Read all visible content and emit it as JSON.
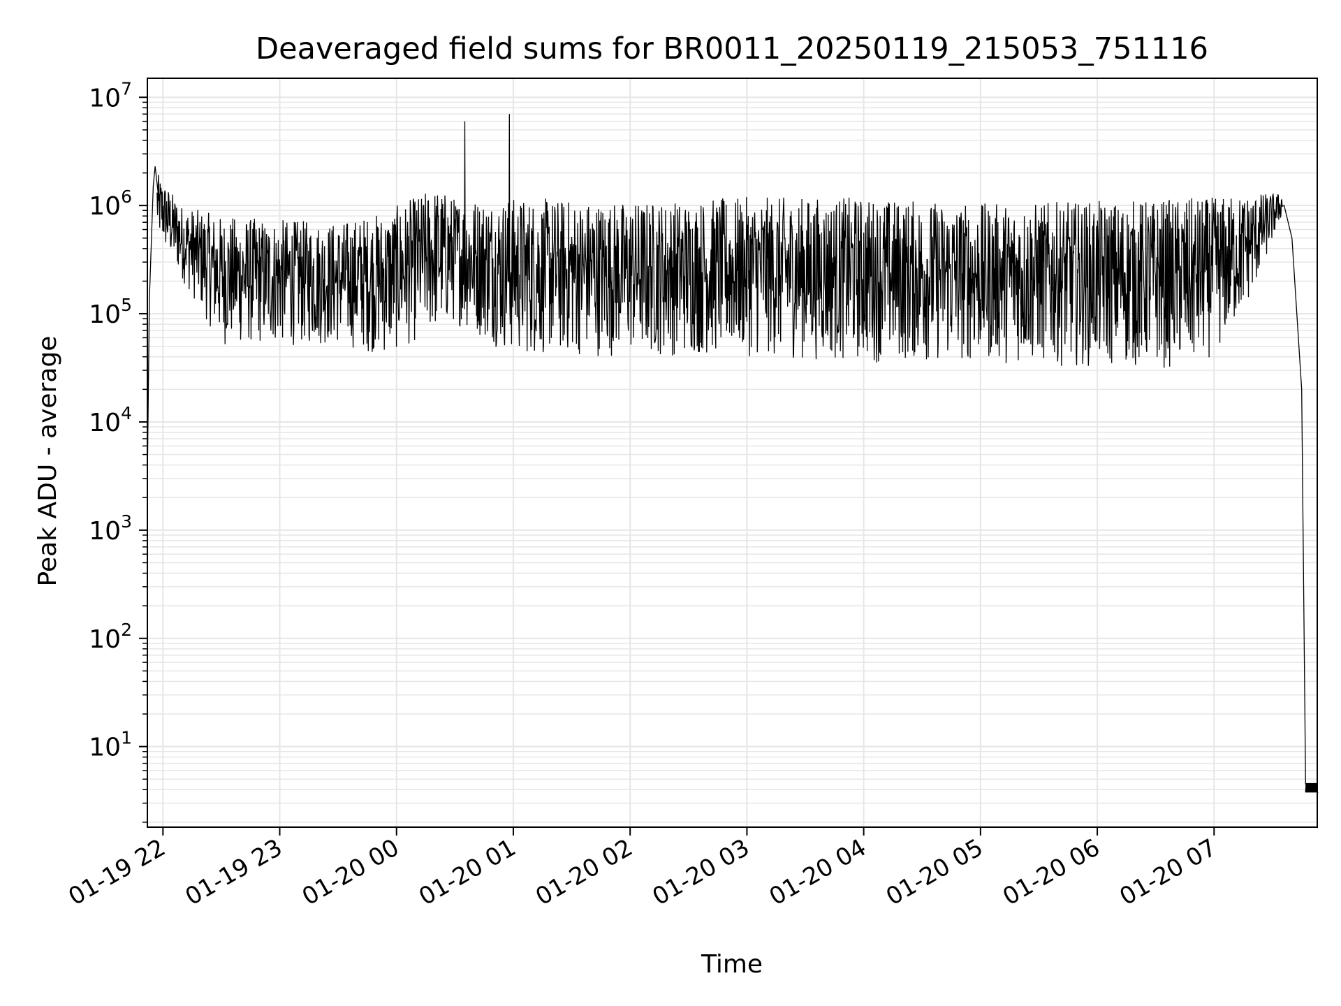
{
  "chart_data": {
    "type": "line",
    "title": "Deaveraged field sums for BR0011_20250119_215053_751116",
    "xlabel": "Time",
    "ylabel": "Peak ADU - average",
    "y_scale": "log",
    "ylim": [
      1.8,
      15000000
    ],
    "xlim": [
      "2025-01-19 21:52",
      "2025-01-20 07:53"
    ],
    "grid": true,
    "line_color": "#000000",
    "grid_color": "#e6e6e6",
    "x_ticks": [
      {
        "time": "2025-01-19 22:00",
        "label": "01-19 22"
      },
      {
        "time": "2025-01-19 23:00",
        "label": "01-19 23"
      },
      {
        "time": "2025-01-20 00:00",
        "label": "01-20 00"
      },
      {
        "time": "2025-01-20 01:00",
        "label": "01-20 01"
      },
      {
        "time": "2025-01-20 02:00",
        "label": "01-20 02"
      },
      {
        "time": "2025-01-20 03:00",
        "label": "01-20 03"
      },
      {
        "time": "2025-01-20 04:00",
        "label": "01-20 04"
      },
      {
        "time": "2025-01-20 05:00",
        "label": "01-20 05"
      },
      {
        "time": "2025-01-20 06:00",
        "label": "01-20 06"
      },
      {
        "time": "2025-01-20 07:00",
        "label": "01-20 07"
      }
    ],
    "y_ticks": [
      {
        "value": 10,
        "base": "10",
        "exp": "1"
      },
      {
        "value": 100,
        "base": "10",
        "exp": "2"
      },
      {
        "value": 1000,
        "base": "10",
        "exp": "3"
      },
      {
        "value": 10000,
        "base": "10",
        "exp": "4"
      },
      {
        "value": 100000,
        "base": "10",
        "exp": "5"
      },
      {
        "value": 1000000,
        "base": "10",
        "exp": "6"
      },
      {
        "value": 10000000,
        "base": "10",
        "exp": "7"
      }
    ],
    "series": [
      {
        "points": [
          [
            "2025-01-19 21:52",
            2800
          ],
          [
            "2025-01-19 21:53",
            130000
          ],
          [
            "2025-01-19 21:55",
            1500000
          ],
          [
            "2025-01-19 21:56",
            2300000
          ],
          [
            "2025-01-19 21:58",
            1100000
          ],
          [
            "2025-01-19 22:05",
            500000
          ],
          [
            "2025-01-19 22:15",
            300000
          ],
          [
            "2025-01-19 22:30",
            150000
          ],
          [
            "2025-01-19 22:45",
            120000
          ],
          [
            "2025-01-19 23:00",
            150000
          ],
          [
            "2025-01-19 23:15",
            200000
          ],
          [
            "2025-01-19 23:30",
            120000
          ],
          [
            "2025-01-19 23:45",
            150000
          ],
          [
            "2025-01-20 00:00",
            180000
          ],
          [
            "2025-01-20 00:15",
            350000
          ],
          [
            "2025-01-20 00:30",
            400000
          ],
          [
            "2025-01-20 00:35",
            6000000
          ],
          [
            "2025-01-20 00:45",
            500000
          ],
          [
            "2025-01-20 00:58",
            7000000
          ],
          [
            "2025-01-20 01:15",
            350000
          ],
          [
            "2025-01-20 01:30",
            300000
          ],
          [
            "2025-01-20 02:00",
            250000
          ],
          [
            "2025-01-20 02:30",
            200000
          ],
          [
            "2025-01-20 03:00",
            180000
          ],
          [
            "2025-01-20 03:30",
            150000
          ],
          [
            "2025-01-20 04:00",
            150000
          ],
          [
            "2025-01-20 04:30",
            150000
          ],
          [
            "2025-01-20 05:00",
            120000
          ],
          [
            "2025-01-20 05:30",
            120000
          ],
          [
            "2025-01-20 06:00",
            100000
          ],
          [
            "2025-01-20 06:30",
            100000
          ],
          [
            "2025-01-20 06:50",
            120000
          ],
          [
            "2025-01-20 07:10",
            400000
          ],
          [
            "2025-01-20 07:20",
            700000
          ],
          [
            "2025-01-20 07:30",
            1200000
          ],
          [
            "2025-01-20 07:36",
            1000000
          ],
          [
            "2025-01-20 07:40",
            500000
          ],
          [
            "2025-01-20 07:45",
            20000
          ],
          [
            "2025-01-20 07:47",
            4.5
          ],
          [
            "2025-01-20 07:53",
            3.8
          ]
        ],
        "noise_envelope": {
          "low": [
            [
              "2025-01-19 21:57",
              500000
            ],
            [
              "2025-01-19 22:10",
              200000
            ],
            [
              "2025-01-19 22:30",
              50000
            ],
            [
              "2025-01-19 23:30",
              50000
            ],
            [
              "2025-01-19 23:55",
              40000
            ],
            [
              "2025-01-20 00:30",
              80000
            ],
            [
              "2025-01-20 01:00",
              40000
            ],
            [
              "2025-01-20 02:00",
              40000
            ],
            [
              "2025-01-20 03:00",
              40000
            ],
            [
              "2025-01-20 04:00",
              35000
            ],
            [
              "2025-01-20 05:00",
              35000
            ],
            [
              "2025-01-20 06:00",
              32000
            ],
            [
              "2025-01-20 06:50",
              30000
            ],
            [
              "2025-01-20 07:05",
              50000
            ],
            [
              "2025-01-20 07:20",
              150000
            ],
            [
              "2025-01-20 07:35",
              800000
            ]
          ],
          "high": [
            [
              "2025-01-19 21:57",
              2000000
            ],
            [
              "2025-01-19 22:10",
              1000000
            ],
            [
              "2025-01-19 22:30",
              800000
            ],
            [
              "2025-01-19 23:30",
              700000
            ],
            [
              "2025-01-19 23:55",
              900000
            ],
            [
              "2025-01-20 00:20",
              1500000
            ],
            [
              "2025-01-20 00:30",
              1200000
            ],
            [
              "2025-01-20 01:00",
              1200000
            ],
            [
              "2025-01-20 02:00",
              1100000
            ],
            [
              "2025-01-20 03:00",
              1200000
            ],
            [
              "2025-01-20 04:00",
              1200000
            ],
            [
              "2025-01-20 05:00",
              1050000
            ],
            [
              "2025-01-20 06:00",
              1100000
            ],
            [
              "2025-01-20 07:00",
              1200000
            ],
            [
              "2025-01-20 07:20",
              1300000
            ],
            [
              "2025-01-20 07:35",
              1300000
            ]
          ]
        }
      }
    ]
  }
}
